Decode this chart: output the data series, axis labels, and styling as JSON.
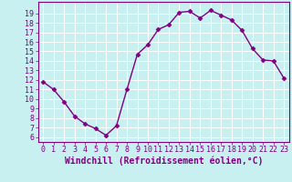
{
  "x": [
    0,
    1,
    2,
    3,
    4,
    5,
    6,
    7,
    8,
    9,
    10,
    11,
    12,
    13,
    14,
    15,
    16,
    17,
    18,
    19,
    20,
    21,
    22,
    23
  ],
  "y": [
    11.8,
    11.0,
    9.7,
    8.2,
    7.4,
    6.9,
    6.2,
    7.2,
    11.0,
    14.7,
    15.7,
    17.3,
    17.8,
    19.1,
    19.2,
    18.5,
    19.3,
    18.8,
    18.3,
    17.2,
    15.3,
    14.1,
    14.0,
    12.2
  ],
  "line_color": "#800080",
  "marker": "D",
  "marker_size": 2.5,
  "linewidth": 1.0,
  "xlabel": "Windchill (Refroidissement éolien,°C)",
  "ylim": [
    5.5,
    20.2
  ],
  "xlim": [
    -0.5,
    23.5
  ],
  "yticks": [
    6,
    7,
    8,
    9,
    10,
    11,
    12,
    13,
    14,
    15,
    16,
    17,
    18,
    19
  ],
  "xticks": [
    0,
    1,
    2,
    3,
    4,
    5,
    6,
    7,
    8,
    9,
    10,
    11,
    12,
    13,
    14,
    15,
    16,
    17,
    18,
    19,
    20,
    21,
    22,
    23
  ],
  "bg_color": "#c8f0f0",
  "grid_color": "#ffffff",
  "tick_color": "#800080",
  "label_color": "#800080",
  "spine_color": "#800080",
  "xlabel_fontsize": 7.0,
  "tick_fontsize": 6.0
}
